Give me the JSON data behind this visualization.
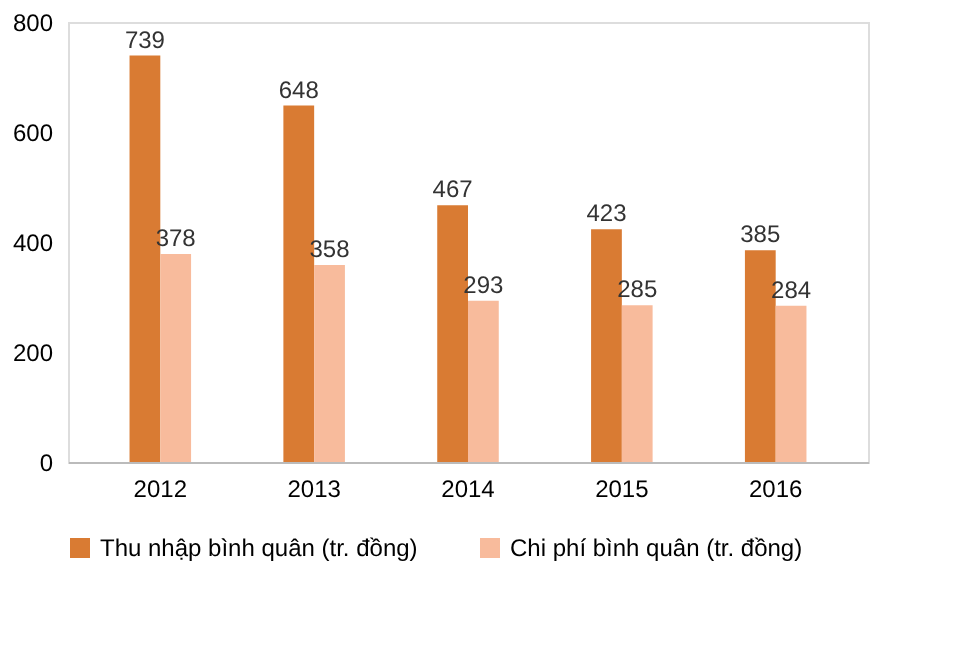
{
  "chart_data": {
    "type": "bar",
    "categories": [
      "2012",
      "2013",
      "2014",
      "2015",
      "2016"
    ],
    "series": [
      {
        "name": "Thu nhập bình quân (tr. đồng)",
        "color": "#d97b33",
        "values": [
          739,
          648,
          467,
          423,
          385
        ]
      },
      {
        "name": "Chi phí bình quân (tr. đồng)",
        "color": "#f8bb9c",
        "values": [
          378,
          358,
          293,
          285,
          284
        ]
      }
    ],
    "ylim": [
      0,
      800
    ],
    "yticks": [
      0,
      200,
      400,
      600,
      800
    ],
    "grid": false,
    "legend": "bottom",
    "data_labels": true
  }
}
